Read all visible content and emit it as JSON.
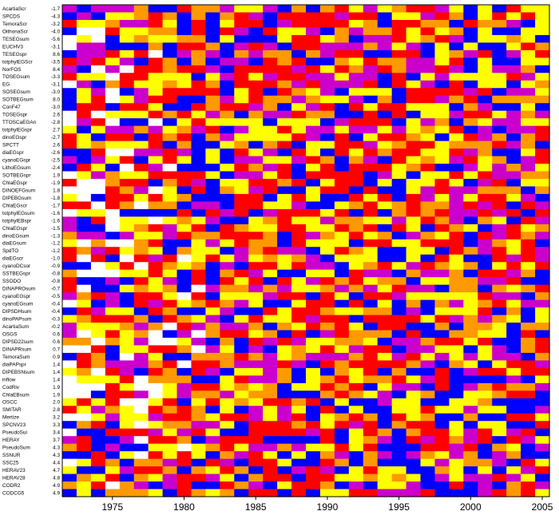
{
  "chart_data": {
    "type": "heatmap",
    "title": "",
    "xlabel": "",
    "ylabel": "",
    "x_range": [
      1972,
      2005
    ],
    "x_ticks": [
      "1975",
      "1980",
      "1985",
      "1990",
      "1995",
      "2000",
      "2005"
    ],
    "color_classes": [
      "white",
      "blue",
      "purple",
      "red",
      "orange",
      "yellow"
    ],
    "palette": {
      "white": "#ffffff",
      "blue": "#0000ff",
      "purple": "#cc00cc",
      "red": "#ff0000",
      "orange": "#ff9900",
      "yellow": "#ffff00"
    },
    "rows": [
      {
        "label": "AcartiaScr",
        "value": "-1.7"
      },
      {
        "label": "SPCDS",
        "value": "-4.3"
      },
      {
        "label": "TemoraScr",
        "value": "-3.2"
      },
      {
        "label": "OithonaScr",
        "value": "-4.0"
      },
      {
        "label": "TESEGsum",
        "value": "-5.6"
      },
      {
        "label": "EUCHV3",
        "value": "-3.1"
      },
      {
        "label": "TESEGspr",
        "value": "8.6"
      },
      {
        "label": "totphylEGScr",
        "value": "-3.5"
      },
      {
        "label": "NorFOS",
        "value": "8.4"
      },
      {
        "label": "TOSEGsum",
        "value": "-3.3"
      },
      {
        "label": "EG",
        "value": "-3.1"
      },
      {
        "label": "SOSEGsum",
        "value": "-3.0"
      },
      {
        "label": "SOTBEGsum",
        "value": "8.0"
      },
      {
        "label": "ConF47",
        "value": "-3.0"
      },
      {
        "label": "TOSEGspr",
        "value": "2.6"
      },
      {
        "label": "TTOSCaEGAn",
        "value": "-2.8"
      },
      {
        "label": "totphylEGspr",
        "value": "2.7"
      },
      {
        "label": "dinoEGspr",
        "value": "-2.7"
      },
      {
        "label": "SPCTT",
        "value": "2.6"
      },
      {
        "label": "diaEGspr",
        "value": "-2.6"
      },
      {
        "label": "cyanoEGspr",
        "value": "-2.5"
      },
      {
        "label": "LithoEGsum",
        "value": "-2.4"
      },
      {
        "label": "SOTBEGspr",
        "value": "1.9"
      },
      {
        "label": "ChlaEGspr",
        "value": "-1.9"
      },
      {
        "label": "DINOEFGsum",
        "value": "1.8"
      },
      {
        "label": "DIPEBGsum",
        "value": "-1.8"
      },
      {
        "label": "ChlaEGscr",
        "value": "-1.7"
      },
      {
        "label": "totphylEGsum",
        "value": "-1.6"
      },
      {
        "label": "totphylEBspr",
        "value": "-1.6"
      },
      {
        "label": "ChlaEGspr",
        "value": "-1.5"
      },
      {
        "label": "dinoEGsum",
        "value": "-1.3"
      },
      {
        "label": "diaEGsum",
        "value": "-1.2"
      },
      {
        "label": "SpdTO",
        "value": "-1.2"
      },
      {
        "label": "diaEGscr",
        "value": "-1.0"
      },
      {
        "label": "cyanoDCsor",
        "value": "-0.9"
      },
      {
        "label": "SSTBEGspr",
        "value": "-0.8"
      },
      {
        "label": "SSODO",
        "value": "-0.8"
      },
      {
        "label": "DINAPROsum",
        "value": "-0.7"
      },
      {
        "label": "cyanoEGspr",
        "value": "-0.5"
      },
      {
        "label": "cyanoEGsum",
        "value": "-0.4"
      },
      {
        "label": "DIPSDHsum",
        "value": "-0.4"
      },
      {
        "label": "dinoPAPsum",
        "value": "-0.3"
      },
      {
        "label": "AcartiaSum",
        "value": "-0.2"
      },
      {
        "label": "OSGS",
        "value": "0.6"
      },
      {
        "label": "DIPSD22sum",
        "value": "0.6"
      },
      {
        "label": "DINAPRsum",
        "value": "0.7"
      },
      {
        "label": "TemoraSum",
        "value": "0.9"
      },
      {
        "label": "diaPAPspr",
        "value": "1.4"
      },
      {
        "label": "DIPEBSNsum",
        "value": "1.4"
      },
      {
        "label": "inflow",
        "value": "1.4"
      },
      {
        "label": "CodRiv",
        "value": "1.9"
      },
      {
        "label": "ChlaEBsum",
        "value": "1.9"
      },
      {
        "label": "OSCC",
        "value": "2.0"
      },
      {
        "label": "SMITAR",
        "value": "2.8"
      },
      {
        "label": "Mertize",
        "value": "3.2"
      },
      {
        "label": "SPCNV23",
        "value": "3.3"
      },
      {
        "label": "PseudoSui",
        "value": "3.4"
      },
      {
        "label": "HERAY",
        "value": "3.7"
      },
      {
        "label": "PseudoSum",
        "value": "4.3"
      },
      {
        "label": "SSNUR",
        "value": "4.3"
      },
      {
        "label": "SSC25",
        "value": "4.4"
      },
      {
        "label": "HERAV23",
        "value": "4.7"
      },
      {
        "label": "HERAV28",
        "value": "4.8"
      },
      {
        "label": "CODR2",
        "value": "4.9"
      },
      {
        "label": "CODCG5",
        "value": "4.9"
      }
    ]
  }
}
